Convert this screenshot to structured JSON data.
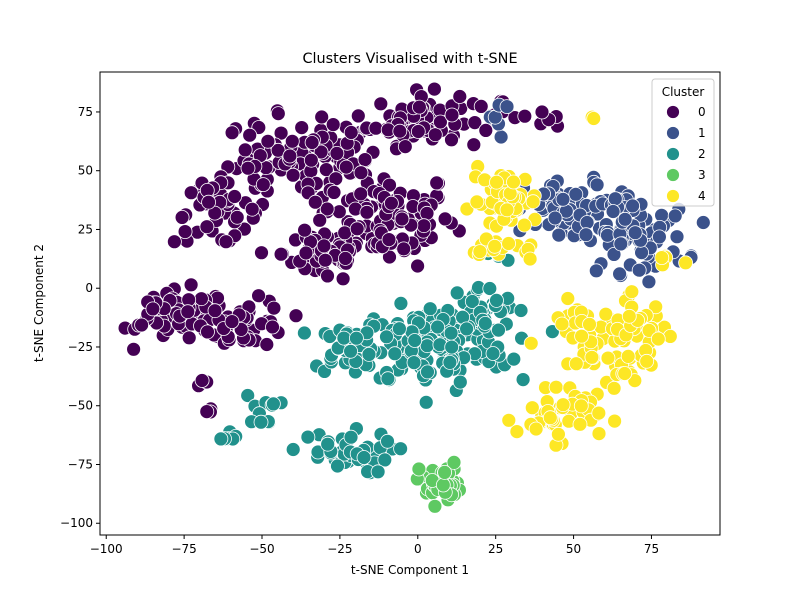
{
  "chart_data": {
    "type": "scatter",
    "title": "Clusters Visualised with t-SNE",
    "xlabel": "t-SNE Component 1",
    "ylabel": "t-SNE Component 2",
    "xlim": [
      -102,
      97
    ],
    "ylim": [
      -105,
      92
    ],
    "xticks": [
      -100,
      -75,
      -50,
      -25,
      0,
      25,
      50,
      75
    ],
    "yticks": [
      -100,
      -75,
      -50,
      -25,
      0,
      25,
      50,
      75
    ],
    "grid": false,
    "legend": {
      "title": "Cluster",
      "placement": "top-right",
      "entries": [
        "0",
        "1",
        "2",
        "3",
        "4"
      ]
    },
    "colors": [
      "#440154",
      "#3b528b",
      "#21918c",
      "#5ec962",
      "#fde725"
    ],
    "series": [
      {
        "name": "0",
        "blobs": [
          {
            "cx": -28,
            "cy": 55,
            "rx": 14,
            "ry": 16,
            "n": 70
          },
          {
            "cx": -10,
            "cy": 30,
            "rx": 20,
            "ry": 18,
            "n": 110
          },
          {
            "cx": 0,
            "cy": 72,
            "rx": 12,
            "ry": 10,
            "n": 70
          },
          {
            "cx": -50,
            "cy": 55,
            "rx": 10,
            "ry": 16,
            "n": 40
          },
          {
            "cx": -65,
            "cy": 32,
            "rx": 12,
            "ry": 12,
            "n": 45
          },
          {
            "cx": -30,
            "cy": 15,
            "rx": 12,
            "ry": 12,
            "n": 55
          },
          {
            "cx": -75,
            "cy": -12,
            "rx": 13,
            "ry": 10,
            "n": 60
          },
          {
            "cx": -55,
            "cy": -15,
            "rx": 12,
            "ry": 9,
            "n": 45
          },
          {
            "cx": -85,
            "cy": -10,
            "rx": 5,
            "ry": 5,
            "n": 10
          },
          {
            "cx": -68,
            "cy": -40,
            "rx": 3,
            "ry": 2,
            "n": 4
          },
          {
            "cx": -68,
            "cy": -52,
            "rx": 2,
            "ry": 2,
            "n": 3
          },
          {
            "cx": 25,
            "cy": 76,
            "rx": 10,
            "ry": 4,
            "n": 12
          },
          {
            "cx": 42,
            "cy": 73,
            "rx": 6,
            "ry": 4,
            "n": 6
          }
        ]
      },
      {
        "name": "1",
        "blobs": [
          {
            "cx": 50,
            "cy": 33,
            "rx": 14,
            "ry": 12,
            "n": 70
          },
          {
            "cx": 70,
            "cy": 20,
            "rx": 15,
            "ry": 12,
            "n": 60
          },
          {
            "cx": 65,
            "cy": 36,
            "rx": 8,
            "ry": 6,
            "n": 20
          },
          {
            "cx": 28,
            "cy": 73,
            "rx": 5,
            "ry": 5,
            "n": 6
          }
        ]
      },
      {
        "name": "2",
        "blobs": [
          {
            "cx": 5,
            "cy": -25,
            "rx": 22,
            "ry": 15,
            "n": 140
          },
          {
            "cx": 20,
            "cy": -10,
            "rx": 10,
            "ry": 10,
            "n": 40
          },
          {
            "cx": -22,
            "cy": -25,
            "rx": 10,
            "ry": 10,
            "n": 40
          },
          {
            "cx": -25,
            "cy": -70,
            "rx": 15,
            "ry": 8,
            "n": 40
          },
          {
            "cx": -50,
            "cy": -52,
            "rx": 5,
            "ry": 6,
            "n": 12
          },
          {
            "cx": -60,
            "cy": -64,
            "rx": 3,
            "ry": 3,
            "n": 6
          },
          {
            "cx": 25,
            "cy": 14,
            "rx": 5,
            "ry": 3,
            "n": 4
          }
        ]
      },
      {
        "name": "3",
        "blobs": [
          {
            "cx": 7,
            "cy": -83,
            "rx": 6,
            "ry": 8,
            "n": 40
          }
        ]
      },
      {
        "name": "4",
        "blobs": [
          {
            "cx": 28,
            "cy": 37,
            "rx": 10,
            "ry": 12,
            "n": 50
          },
          {
            "cx": 55,
            "cy": -25,
            "rx": 9,
            "ry": 18,
            "n": 45
          },
          {
            "cx": 70,
            "cy": -20,
            "rx": 10,
            "ry": 14,
            "n": 45
          },
          {
            "cx": 45,
            "cy": -55,
            "rx": 12,
            "ry": 9,
            "n": 40
          },
          {
            "cx": 28,
            "cy": 16,
            "rx": 10,
            "ry": 4,
            "n": 15
          },
          {
            "cx": 80,
            "cy": 12,
            "rx": 4,
            "ry": 3,
            "n": 5
          },
          {
            "cx": 56,
            "cy": 72,
            "rx": 2,
            "ry": 1,
            "n": 2
          },
          {
            "cx": 68,
            "cy": -38,
            "rx": 4,
            "ry": 3,
            "n": 4
          }
        ]
      }
    ]
  }
}
